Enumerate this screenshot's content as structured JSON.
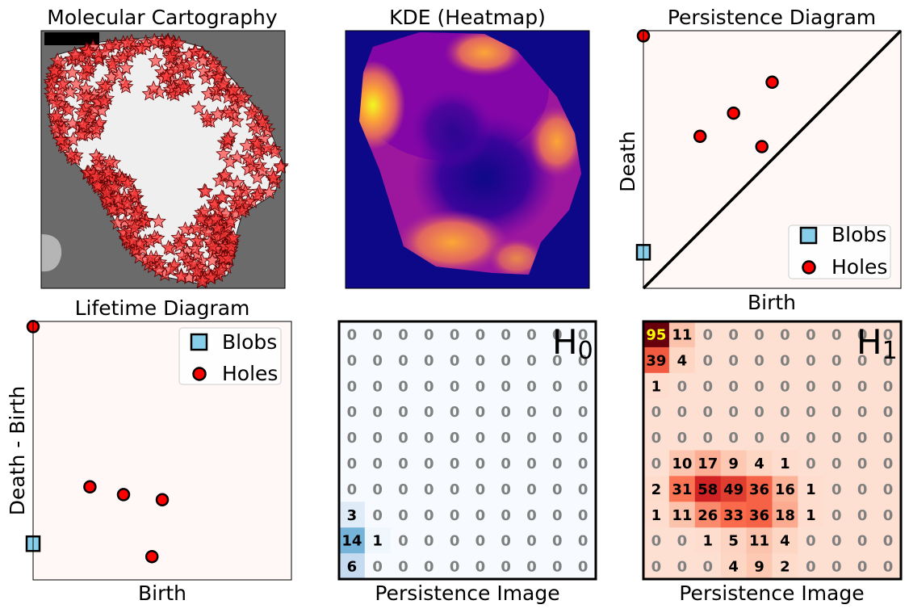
{
  "panels": {
    "cartography": {
      "title": "Molecular Cartography"
    },
    "kde": {
      "title": "KDE (Heatmap)"
    },
    "persistence": {
      "title": "Persistence Diagram",
      "xlabel": "Birth",
      "ylabel": "Death"
    },
    "lifetime": {
      "title": "Lifetime Diagram",
      "xlabel": "Birth",
      "ylabel": "Death - Birth"
    },
    "pi_h0": {
      "xlabel": "Persistence Image",
      "label_main": "H",
      "label_sub": "0"
    },
    "pi_h1": {
      "xlabel": "Persistence Image",
      "label_main": "H",
      "label_sub": "1"
    }
  },
  "legend": {
    "blobs": "Blobs",
    "holes": "Holes"
  },
  "colors": {
    "blobs": "#87ceeb",
    "holes": "#ff0000",
    "stars": "#ff3b3b",
    "tissue_bg": "#6b6b6b",
    "tissue_light": "#efefef",
    "kde_bg": "#0d0887",
    "diagram_bg": "#fff8f6"
  },
  "chart_data": [
    {
      "type": "scatter",
      "name": "persistence_diagram",
      "xlim": [
        0,
        1
      ],
      "ylim": [
        0,
        1
      ],
      "series": [
        {
          "name": "Blobs",
          "points": [
            [
              0.0,
              0.14
            ]
          ]
        },
        {
          "name": "Holes",
          "points": [
            [
              0.0,
              0.98
            ],
            [
              0.22,
              0.59
            ],
            [
              0.35,
              0.68
            ],
            [
              0.46,
              0.55
            ],
            [
              0.5,
              0.8
            ]
          ]
        }
      ],
      "diagonal": true
    },
    {
      "type": "scatter",
      "name": "lifetime_diagram",
      "xlim": [
        0,
        1
      ],
      "ylim": [
        0,
        1
      ],
      "series": [
        {
          "name": "Blobs",
          "points": [
            [
              0.0,
              0.14
            ]
          ]
        },
        {
          "name": "Holes",
          "points": [
            [
              0.0,
              0.98
            ],
            [
              0.22,
              0.36
            ],
            [
              0.35,
              0.33
            ],
            [
              0.5,
              0.31
            ],
            [
              0.46,
              0.09
            ]
          ]
        }
      ]
    },
    {
      "type": "heatmap",
      "name": "persistence_image_h0",
      "values": [
        [
          0,
          0,
          0,
          0,
          0,
          0,
          0,
          0,
          0,
          0
        ],
        [
          0,
          0,
          0,
          0,
          0,
          0,
          0,
          0,
          0,
          0
        ],
        [
          0,
          0,
          0,
          0,
          0,
          0,
          0,
          0,
          0,
          0
        ],
        [
          0,
          0,
          0,
          0,
          0,
          0,
          0,
          0,
          0,
          0
        ],
        [
          0,
          0,
          0,
          0,
          0,
          0,
          0,
          0,
          0,
          0
        ],
        [
          0,
          0,
          0,
          0,
          0,
          0,
          0,
          0,
          0,
          0
        ],
        [
          0,
          0,
          0,
          0,
          0,
          0,
          0,
          0,
          0,
          0
        ],
        [
          3,
          0,
          0,
          0,
          0,
          0,
          0,
          0,
          0,
          0
        ],
        [
          14,
          1,
          0,
          0,
          0,
          0,
          0,
          0,
          0,
          0
        ],
        [
          6,
          0,
          0,
          0,
          0,
          0,
          0,
          0,
          0,
          0
        ]
      ]
    },
    {
      "type": "heatmap",
      "name": "persistence_image_h1",
      "values": [
        [
          95,
          11,
          0,
          0,
          0,
          0,
          0,
          0,
          0,
          0
        ],
        [
          39,
          4,
          0,
          0,
          0,
          0,
          0,
          0,
          0,
          0
        ],
        [
          1,
          0,
          0,
          0,
          0,
          0,
          0,
          0,
          0,
          0
        ],
        [
          0,
          0,
          0,
          0,
          0,
          0,
          0,
          0,
          0,
          0
        ],
        [
          0,
          0,
          0,
          0,
          0,
          0,
          0,
          0,
          0,
          0
        ],
        [
          0,
          10,
          17,
          9,
          4,
          1,
          0,
          0,
          0,
          0
        ],
        [
          2,
          31,
          58,
          49,
          36,
          16,
          1,
          0,
          0,
          0
        ],
        [
          1,
          11,
          26,
          33,
          36,
          18,
          1,
          0,
          0,
          0
        ],
        [
          0,
          0,
          1,
          5,
          11,
          4,
          0,
          0,
          0,
          0
        ],
        [
          0,
          0,
          0,
          4,
          9,
          2,
          0,
          0,
          0,
          0
        ]
      ]
    }
  ]
}
